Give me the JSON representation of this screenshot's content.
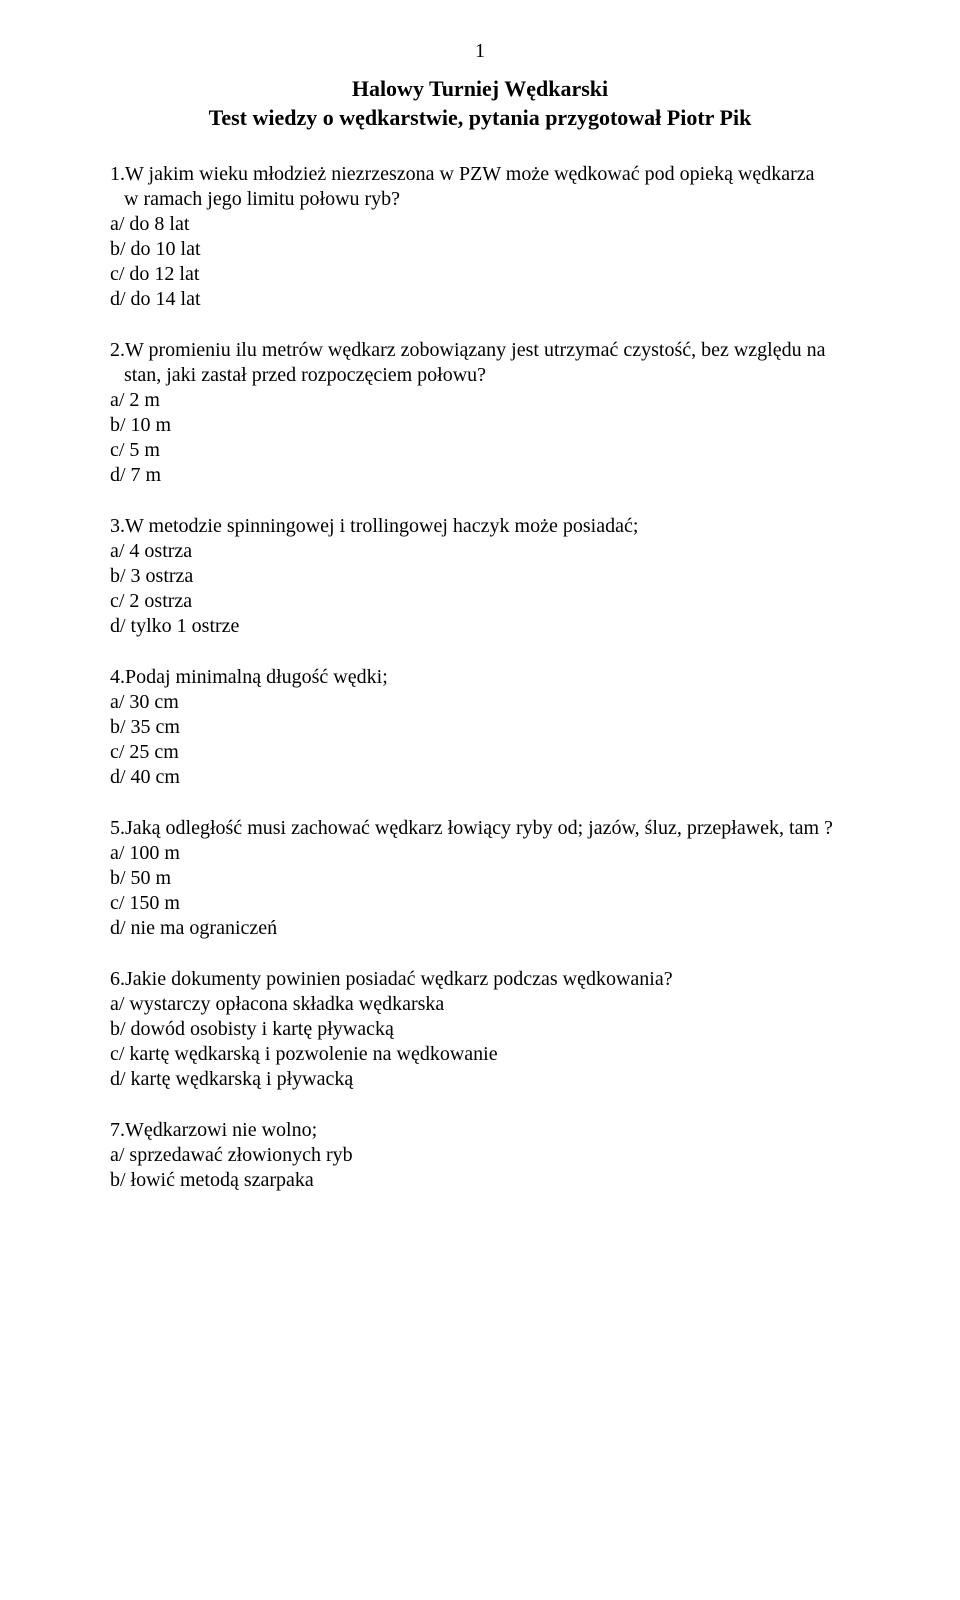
{
  "page_number": "1",
  "title_line1": "Halowy Turniej Wędkarski",
  "title_line2": "Test wiedzy o wędkarstwie, pytania przygotował Piotr Pik",
  "q1": {
    "text_l1": "1.W jakim wieku młodzież niezrzeszona w PZW może wędkować pod opieką wędkarza",
    "text_l2": "w ramach jego limitu połowu ryb?",
    "a": "a/ do 8 lat",
    "b": "b/ do 10 lat",
    "c": "c/ do 12 lat",
    "d": "d/ do 14 lat"
  },
  "q2": {
    "text_l1": "2.W promieniu ilu metrów wędkarz zobowiązany jest utrzymać czystość, bez względu na",
    "text_l2": "stan, jaki zastał przed rozpoczęciem połowu?",
    "a": "a/ 2 m",
    "b": "b/ 10 m",
    "c": "c/ 5 m",
    "d": "d/ 7 m"
  },
  "q3": {
    "text": "3.W metodzie spinningowej i trollingowej haczyk może posiadać;",
    "a": "a/ 4 ostrza",
    "b": "b/ 3 ostrza",
    "c": "c/ 2 ostrza",
    "d": "d/ tylko 1 ostrze"
  },
  "q4": {
    "text": "4.Podaj minimalną długość wędki;",
    "a": "a/ 30 cm",
    "b": "b/ 35 cm",
    "c": "c/ 25 cm",
    "d": "d/ 40 cm"
  },
  "q5": {
    "text": "5.Jaką odległość musi zachować wędkarz łowiący ryby od;  jazów, śluz, przepławek, tam ?",
    "a": "a/ 100 m",
    "b": "b/ 50 m",
    "c": "c/ 150 m",
    "d": "d/ nie ma ograniczeń"
  },
  "q6": {
    "text": "6.Jakie dokumenty powinien posiadać wędkarz podczas wędkowania?",
    "a": "a/ wystarczy opłacona składka wędkarska",
    "b": "b/ dowód osobisty i kartę pływacką",
    "c": "c/ kartę wędkarską i pozwolenie na wędkowanie",
    "d": "d/ kartę wędkarską i pływacką"
  },
  "q7": {
    "text": "7.Wędkarzowi nie wolno;",
    "a": "a/ sprzedawać złowionych ryb",
    "b": "b/ łowić metodą szarpaka"
  }
}
